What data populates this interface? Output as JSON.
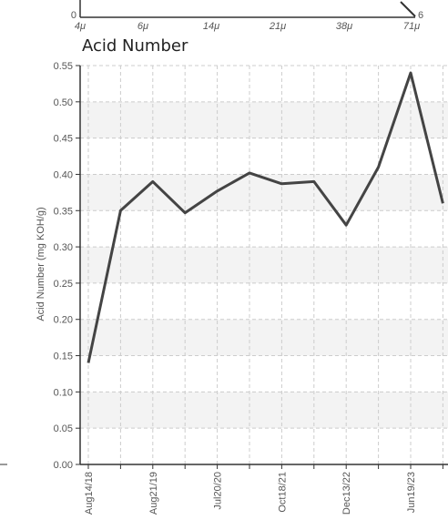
{
  "top_strip": {
    "x_ticks": [
      "4μ",
      "6μ",
      "14μ",
      "21μ",
      "38μ",
      "71μ"
    ],
    "y_zero": "0",
    "right_label": "6"
  },
  "chart_data": {
    "type": "line",
    "title": "Acid Number",
    "ylabel": "Acid Number (mg KOH/g)",
    "xlabel": "",
    "ylim": [
      0,
      0.55
    ],
    "y_ticks": [
      "0.00",
      "0.05",
      "0.10",
      "0.15",
      "0.20",
      "0.25",
      "0.30",
      "0.35",
      "0.40",
      "0.45",
      "0.50",
      "0.55"
    ],
    "x_tick_labels": [
      "Aug14/18",
      "Aug21/19",
      "Jul20/20",
      "Oct18/21",
      "Dec13/22",
      "Jun19/23"
    ],
    "grid": true,
    "series": [
      {
        "values": [
          0.14,
          0.35,
          0.39,
          0.347,
          0.377,
          0.402,
          0.387,
          0.39,
          0.33,
          0.41,
          0.54,
          0.36
        ]
      }
    ],
    "colors": {
      "line": "#444444",
      "band": "#f3f3f3",
      "grid": "#cccccc",
      "axis": "#333333"
    }
  }
}
